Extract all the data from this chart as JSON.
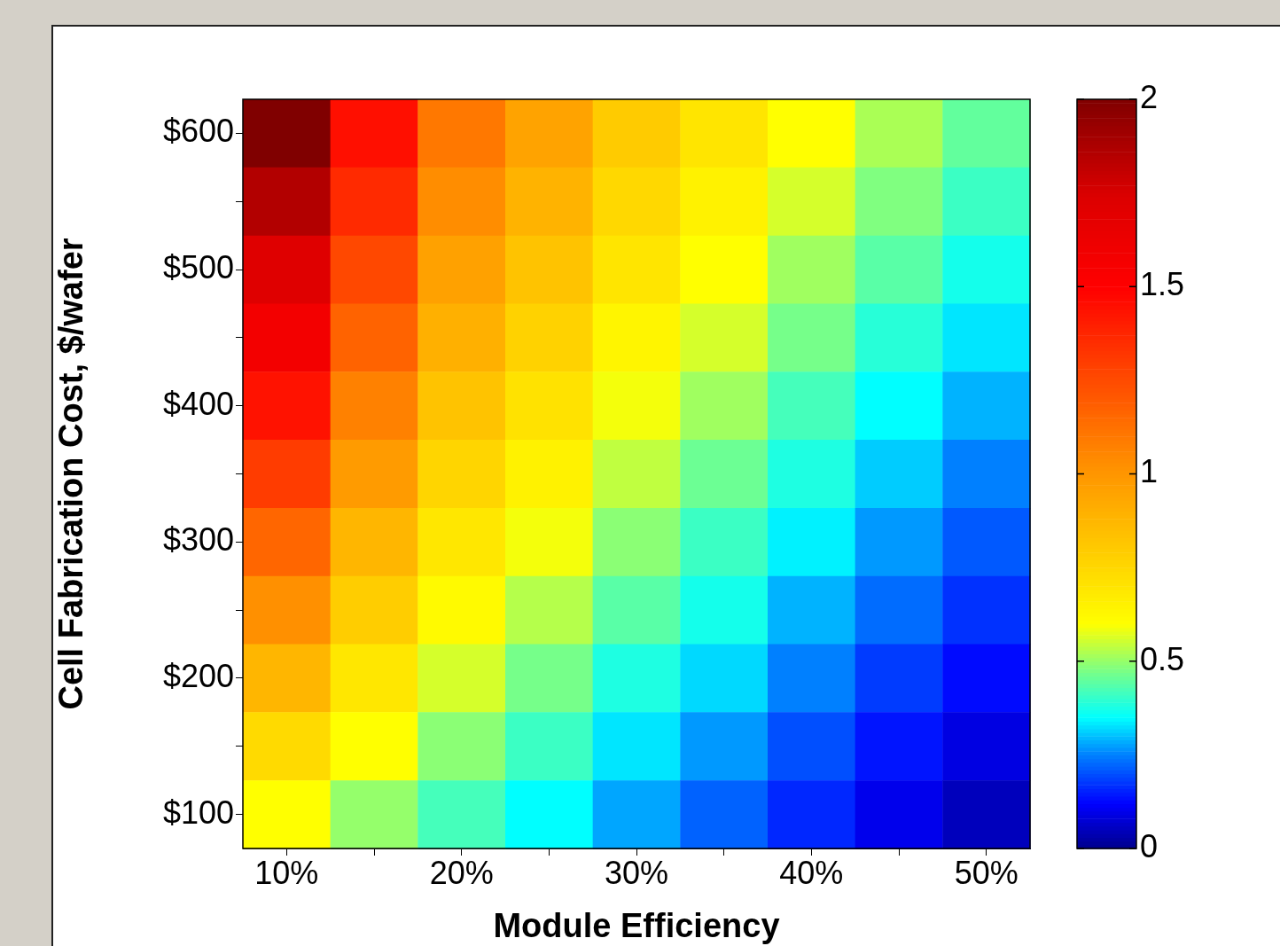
{
  "chart_data": {
    "type": "heatmap",
    "xlabel": "Module Efficiency",
    "ylabel": "Cell Fabrication Cost, $/wafer",
    "categories": [
      "10%",
      null,
      "20%",
      null,
      "30%",
      null,
      "40%",
      null,
      "50%"
    ],
    "y_categories": [
      "$600",
      null,
      "$500",
      null,
      "$400",
      null,
      "$300",
      null,
      "$200",
      null,
      "$100"
    ],
    "cells": [
      [
        2.0,
        1.45,
        1.1,
        0.95,
        0.8,
        0.7,
        0.6,
        0.52,
        0.45
      ],
      [
        1.86,
        1.36,
        1.03,
        0.89,
        0.75,
        0.65,
        0.56,
        0.48,
        0.41
      ],
      [
        1.72,
        1.26,
        0.96,
        0.83,
        0.7,
        0.6,
        0.51,
        0.44,
        0.37
      ],
      [
        1.58,
        1.17,
        0.9,
        0.77,
        0.64,
        0.56,
        0.47,
        0.39,
        0.33
      ],
      [
        1.44,
        1.07,
        0.83,
        0.71,
        0.59,
        0.51,
        0.42,
        0.35,
        0.29
      ],
      [
        1.3,
        0.98,
        0.76,
        0.65,
        0.54,
        0.46,
        0.38,
        0.31,
        0.25
      ],
      [
        1.16,
        0.88,
        0.69,
        0.59,
        0.49,
        0.41,
        0.34,
        0.27,
        0.21
      ],
      [
        1.02,
        0.79,
        0.62,
        0.53,
        0.44,
        0.37,
        0.29,
        0.23,
        0.17
      ],
      [
        0.88,
        0.69,
        0.56,
        0.47,
        0.38,
        0.32,
        0.25,
        0.18,
        0.13
      ],
      [
        0.74,
        0.6,
        0.49,
        0.41,
        0.33,
        0.27,
        0.2,
        0.14,
        0.09
      ],
      [
        0.6,
        0.5,
        0.42,
        0.35,
        0.28,
        0.22,
        0.16,
        0.1,
        0.05
      ]
    ],
    "clim": [
      0,
      2
    ],
    "cticks": [
      0,
      0.5,
      1,
      1.5,
      2
    ]
  }
}
